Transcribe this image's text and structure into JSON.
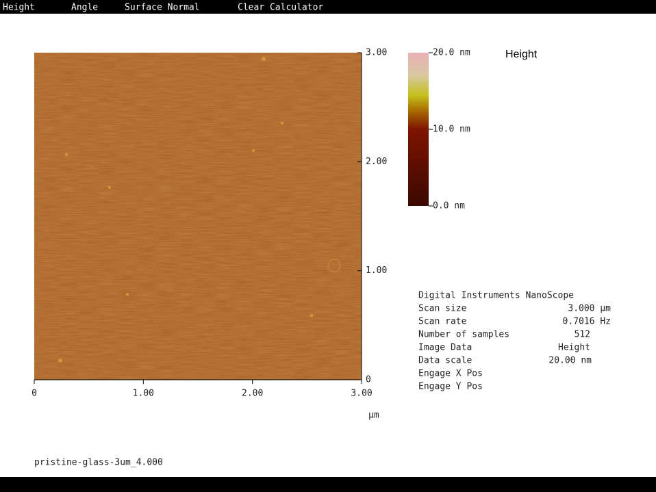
{
  "menu": {
    "items": [
      "Height",
      "Angle",
      "Surface Normal",
      "Clear Calculator"
    ]
  },
  "scan_image": {
    "y_ticks": [
      "3.00",
      "2.00",
      "1.00",
      "0"
    ],
    "x_ticks": [
      "0",
      "1.00",
      "2.00",
      "3.00"
    ],
    "unit": "µm"
  },
  "color_bar": {
    "title": "Height",
    "labels": [
      "20.0 nm",
      "10.0 nm",
      "0.0 nm"
    ]
  },
  "info": {
    "heading": "Digital Instruments NanoScope",
    "rows": [
      [
        "Scan size",
        "3.000 µm"
      ],
      [
        "Scan rate",
        "0.7016 Hz"
      ],
      [
        "Number of samples",
        "512"
      ],
      [
        "Image Data",
        "Height"
      ],
      [
        "Data scale",
        "20.00 nm"
      ],
      [
        "Engage X Pos"
      ],
      [
        "Engage Y Pos"
      ]
    ]
  },
  "footer": {
    "filename": "pristine-glass-3um_4.000"
  }
}
